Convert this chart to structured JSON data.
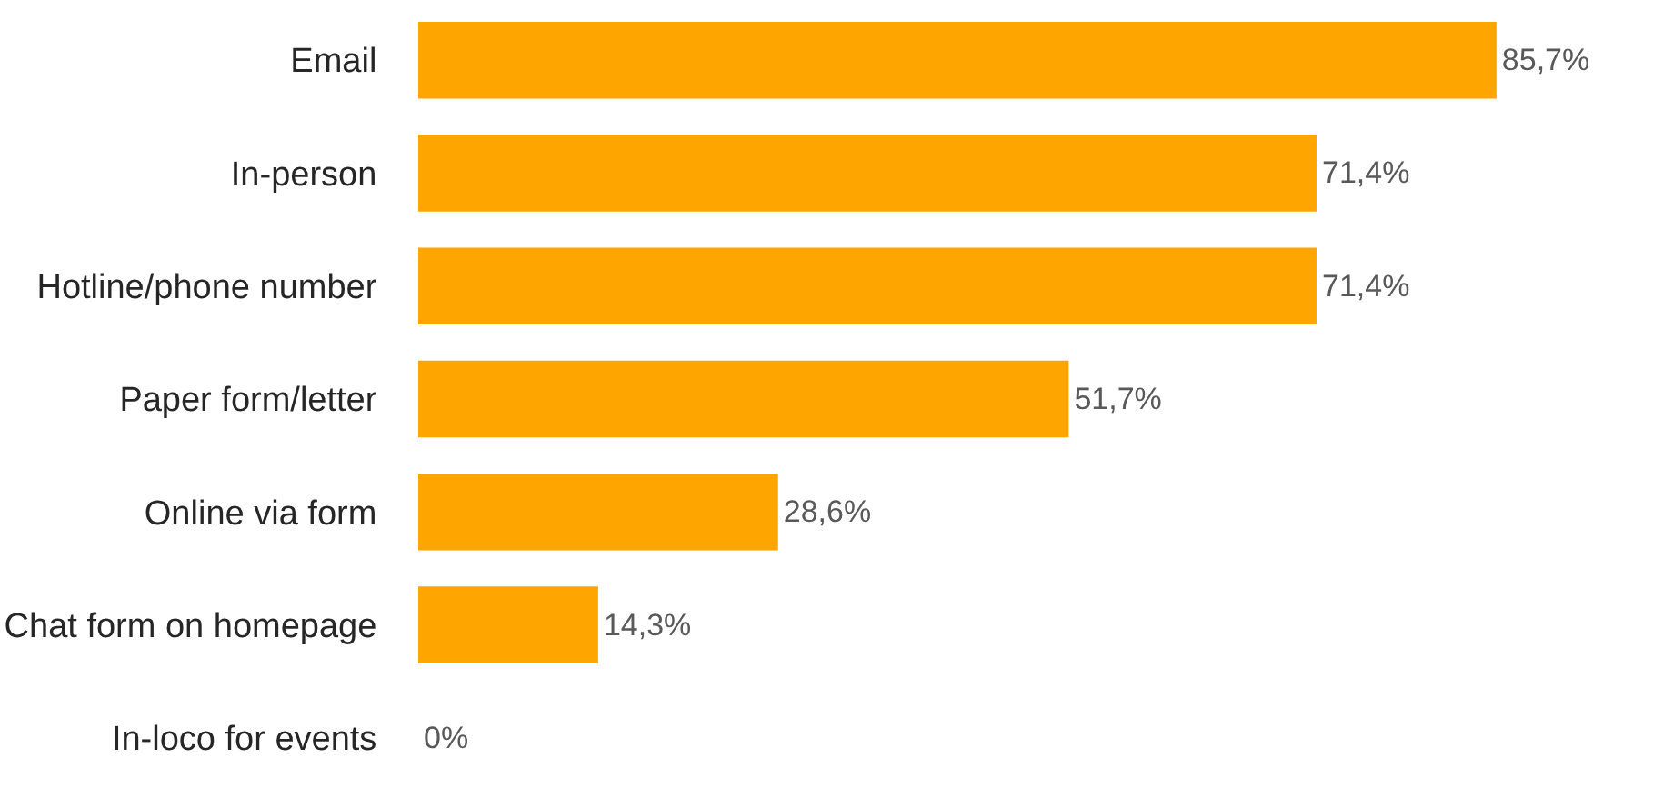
{
  "chart_data": {
    "type": "bar",
    "orientation": "horizontal",
    "categories": [
      "Email",
      "In-person",
      "Hotline/phone number",
      "Paper form/letter",
      "Online via form",
      "Chat form on homepage",
      "In-loco for events"
    ],
    "values": [
      85.7,
      71.4,
      71.4,
      51.7,
      28.6,
      14.3,
      0
    ],
    "value_labels": [
      "85,7%",
      "71,4%",
      "71,4%",
      "51,7%",
      "28,6%",
      "14,3%",
      "0%"
    ],
    "color": "#ffa500"
  }
}
